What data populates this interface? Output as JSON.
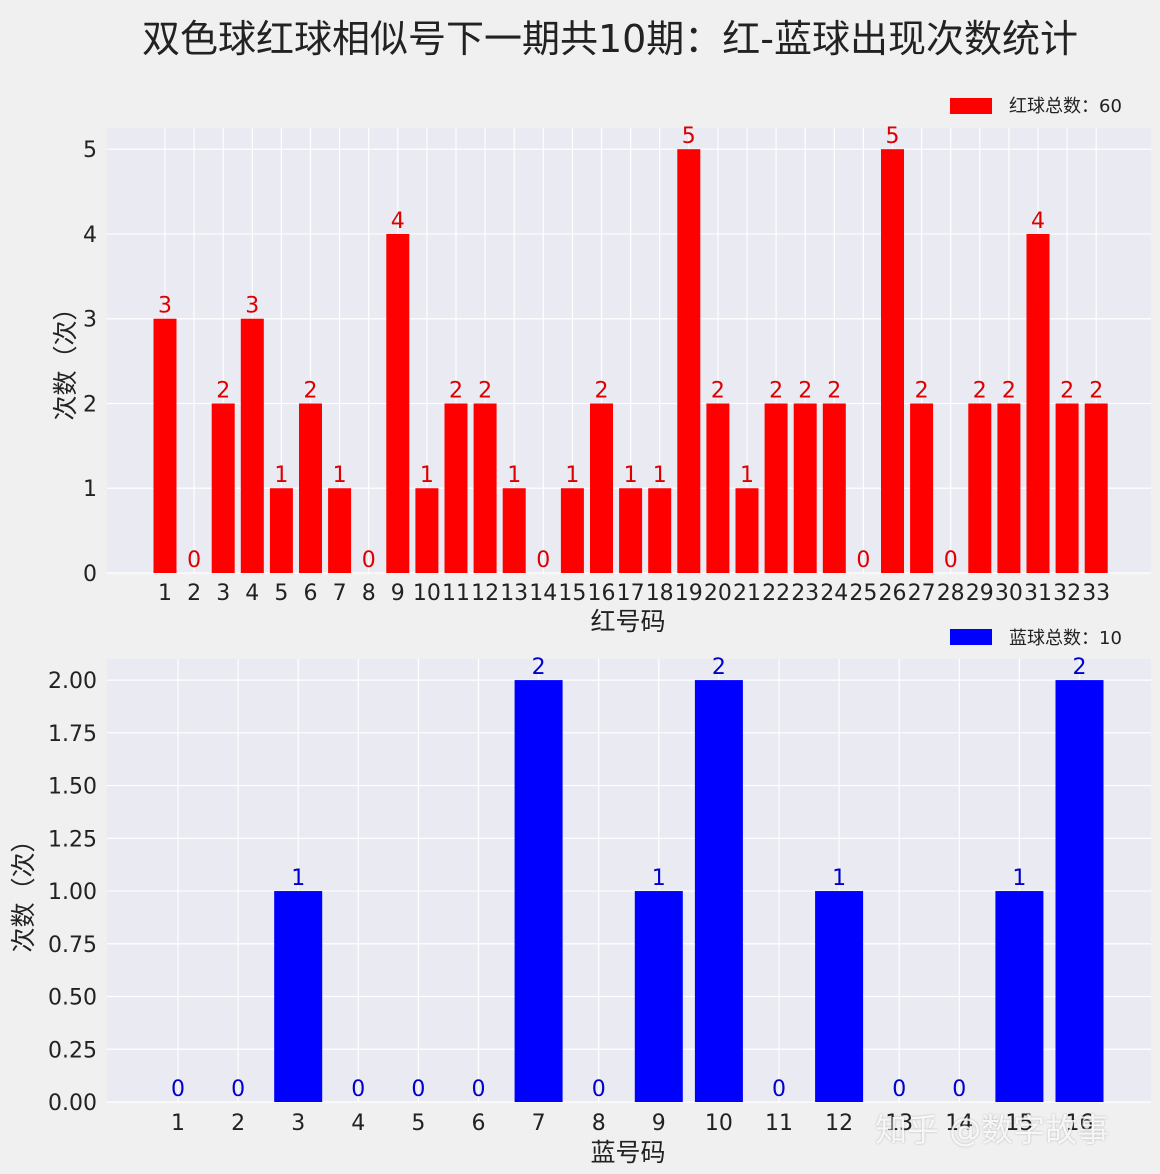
{
  "title": "双色球红球相似号下一期共10期：红-蓝球出现次数统计",
  "watermark": "知乎 @数字故事",
  "chart_data": [
    {
      "type": "bar",
      "name": "red",
      "color": "#ff0000",
      "label_color": "#dd0000",
      "categories": [
        "1",
        "2",
        "3",
        "4",
        "5",
        "6",
        "7",
        "8",
        "9",
        "10",
        "11",
        "12",
        "13",
        "14",
        "15",
        "16",
        "17",
        "18",
        "19",
        "20",
        "21",
        "22",
        "23",
        "24",
        "25",
        "26",
        "27",
        "28",
        "29",
        "30",
        "31",
        "32",
        "33"
      ],
      "values": [
        3,
        0,
        2,
        3,
        1,
        2,
        1,
        0,
        4,
        1,
        2,
        2,
        1,
        0,
        1,
        2,
        1,
        1,
        5,
        2,
        1,
        2,
        2,
        2,
        0,
        5,
        2,
        0,
        2,
        2,
        4,
        2,
        2
      ],
      "xlabel": "红号码",
      "ylabel": "次数（次）",
      "ylim": [
        0,
        5.25
      ],
      "yticks": [
        "0",
        "1",
        "2",
        "3",
        "4",
        "5"
      ],
      "ytick_values": [
        0,
        1,
        2,
        3,
        4,
        5
      ],
      "legend": "红球总数：60",
      "legend_position": "top-right",
      "grid": true
    },
    {
      "type": "bar",
      "name": "blue",
      "color": "#0000ff",
      "label_color": "#0000cc",
      "categories": [
        "1",
        "2",
        "3",
        "4",
        "5",
        "6",
        "7",
        "8",
        "9",
        "10",
        "11",
        "12",
        "13",
        "14",
        "15",
        "16"
      ],
      "values": [
        0,
        0,
        1,
        0,
        0,
        0,
        2,
        0,
        1,
        2,
        0,
        1,
        0,
        0,
        1,
        2
      ],
      "xlabel": "蓝号码",
      "ylabel": "次数（次）",
      "ylim": [
        0,
        2.1
      ],
      "yticks": [
        "0.00",
        "0.25",
        "0.50",
        "0.75",
        "1.00",
        "1.25",
        "1.50",
        "1.75",
        "2.00"
      ],
      "ytick_values": [
        0,
        0.25,
        0.5,
        0.75,
        1,
        1.25,
        1.5,
        1.75,
        2
      ],
      "legend": "蓝球总数：10",
      "legend_position": "top-right",
      "grid": true
    }
  ]
}
